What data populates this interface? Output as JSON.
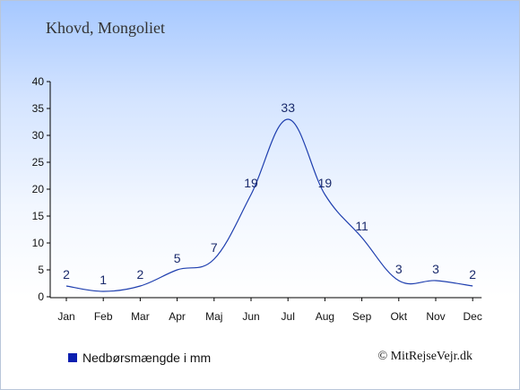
{
  "title": "Khovd, Mongoliet",
  "legend": {
    "label": "Nedbørsmængde i mm",
    "color": "#0b1fb0"
  },
  "copyright": "© MitRejseVejr.dk",
  "colors": {
    "line": "#1f3faf",
    "axis": "#000000",
    "label": "#1a2a6c"
  },
  "chart_data": {
    "type": "line",
    "categories": [
      "Jan",
      "Feb",
      "Mar",
      "Apr",
      "Maj",
      "Jun",
      "Jul",
      "Aug",
      "Sep",
      "Okt",
      "Nov",
      "Dec"
    ],
    "series": [
      {
        "name": "Nedbørsmængde i mm",
        "values": [
          2,
          1,
          2,
          5,
          7,
          19,
          33,
          19,
          11,
          3,
          3,
          2
        ]
      }
    ],
    "ylim": [
      0,
      40
    ],
    "yticks": [
      0,
      5,
      10,
      15,
      20,
      25,
      30,
      35,
      40
    ],
    "grid": false,
    "legend_position": "bottom-left"
  }
}
